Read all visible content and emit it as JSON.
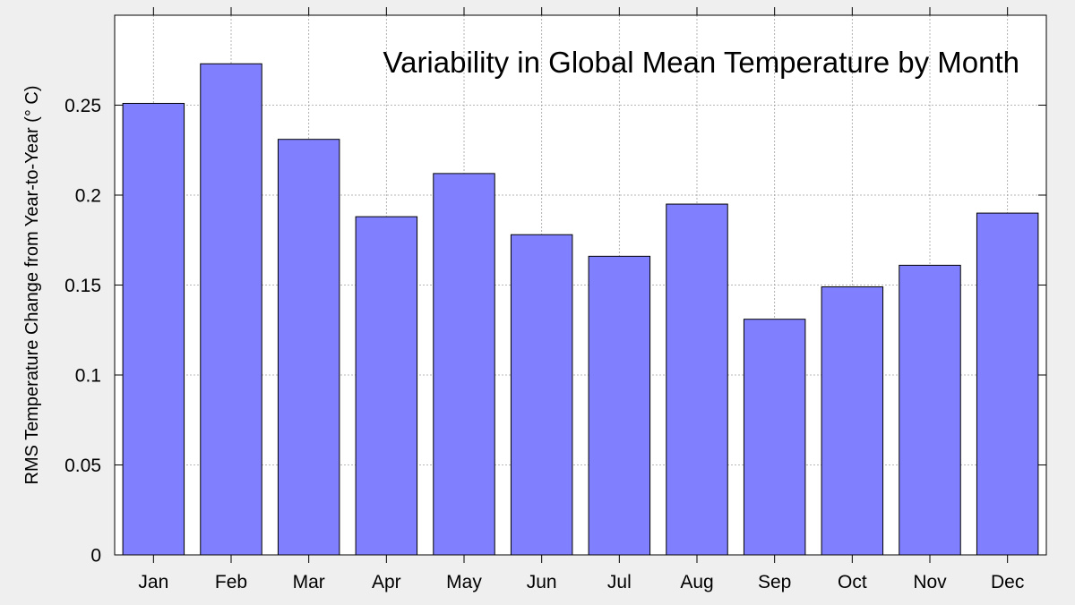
{
  "chart_data": {
    "type": "bar",
    "title": "Variability in Global Mean Temperature by Month",
    "xlabel": "",
    "ylabel": "RMS Temperature Change from Year-to-Year (° C)",
    "categories": [
      "Jan",
      "Feb",
      "Mar",
      "Apr",
      "May",
      "Jun",
      "Jul",
      "Aug",
      "Sep",
      "Oct",
      "Nov",
      "Dec"
    ],
    "values": [
      0.251,
      0.273,
      0.231,
      0.188,
      0.212,
      0.178,
      0.166,
      0.195,
      0.131,
      0.149,
      0.161,
      0.19
    ],
    "ylim": [
      0,
      0.3
    ],
    "yticks": [
      0,
      0.05,
      0.1,
      0.15,
      0.2,
      0.25
    ],
    "ytick_labels": [
      "0",
      "0.05",
      "0.1",
      "0.15",
      "0.2",
      "0.25"
    ],
    "grid": true,
    "legend": "none",
    "colors": {
      "bar_fill": "#8080ff",
      "bar_stroke": "#000000",
      "plot_background": "#ffffff",
      "page_background": "#efefef",
      "grid": "#a0a0a0"
    }
  }
}
